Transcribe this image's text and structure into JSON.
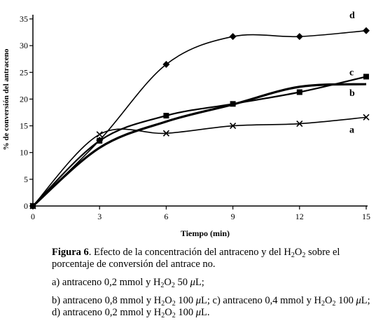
{
  "chart_data": {
    "type": "line",
    "xlabel": "Tiempo (min)",
    "ylabel": "% de conversión del antraceno",
    "x_ticks": [
      0,
      3,
      6,
      9,
      12,
      15
    ],
    "y_ticks": [
      0,
      5,
      10,
      15,
      20,
      25,
      30,
      35
    ],
    "xlim": [
      0,
      15
    ],
    "ylim": [
      0,
      35
    ],
    "grid": false,
    "legend": "labels-on-lines",
    "series": [
      {
        "name": "a",
        "marker": "x",
        "x": [
          0,
          3,
          6,
          9,
          12,
          15
        ],
        "y": [
          0,
          13.4,
          13.6,
          15.0,
          15.4,
          16.6
        ]
      },
      {
        "name": "b",
        "marker": "none",
        "x": [
          0,
          3,
          6,
          9,
          12,
          15
        ],
        "y": [
          0,
          10.9,
          15.8,
          19.0,
          22.3,
          22.8
        ]
      },
      {
        "name": "c",
        "marker": "square",
        "x": [
          0,
          3,
          6,
          9,
          12,
          15
        ],
        "y": [
          0,
          12.2,
          16.9,
          19.1,
          21.3,
          24.2
        ]
      },
      {
        "name": "d",
        "marker": "diamond",
        "x": [
          0,
          3,
          6,
          9,
          12,
          15
        ],
        "y": [
          0,
          12.3,
          26.5,
          31.7,
          31.7,
          32.8
        ]
      }
    ]
  },
  "caption": {
    "fig_label": "Figura 6",
    "line1_a": ". Efecto de la concentración del antraceno y del H",
    "line1_sub": "2",
    "line1_b": "O",
    "line1_sub2": "2",
    "line1_c": " sobre el porcentaje de conversión del antrace no.",
    "a_pre": "a) antraceno 0,2 mmol y H",
    "a_sub1": "2",
    "a_mid": "O",
    "a_sub2": "2",
    "a_post": " 50 ",
    "mu": "μ",
    "a_end": "L;",
    "b_pre": "b) antraceno 0,8 mmol y H",
    "b_sub1": "2",
    "b_mid": "O",
    "b_sub2": "2",
    "b_post": " 100 ",
    "b_end": "L; c) antraceno 0,4 mmol y H",
    "c_sub1": "2",
    "c_mid": "O",
    "c_sub2": "2",
    "c_post": " 100 ",
    "c_end": "L; d) antraceno 0,2 mmol y H",
    "d_sub1": "2",
    "d_mid": "O",
    "d_sub2": "2",
    "d_post": " 100 ",
    "d_end": "L."
  }
}
